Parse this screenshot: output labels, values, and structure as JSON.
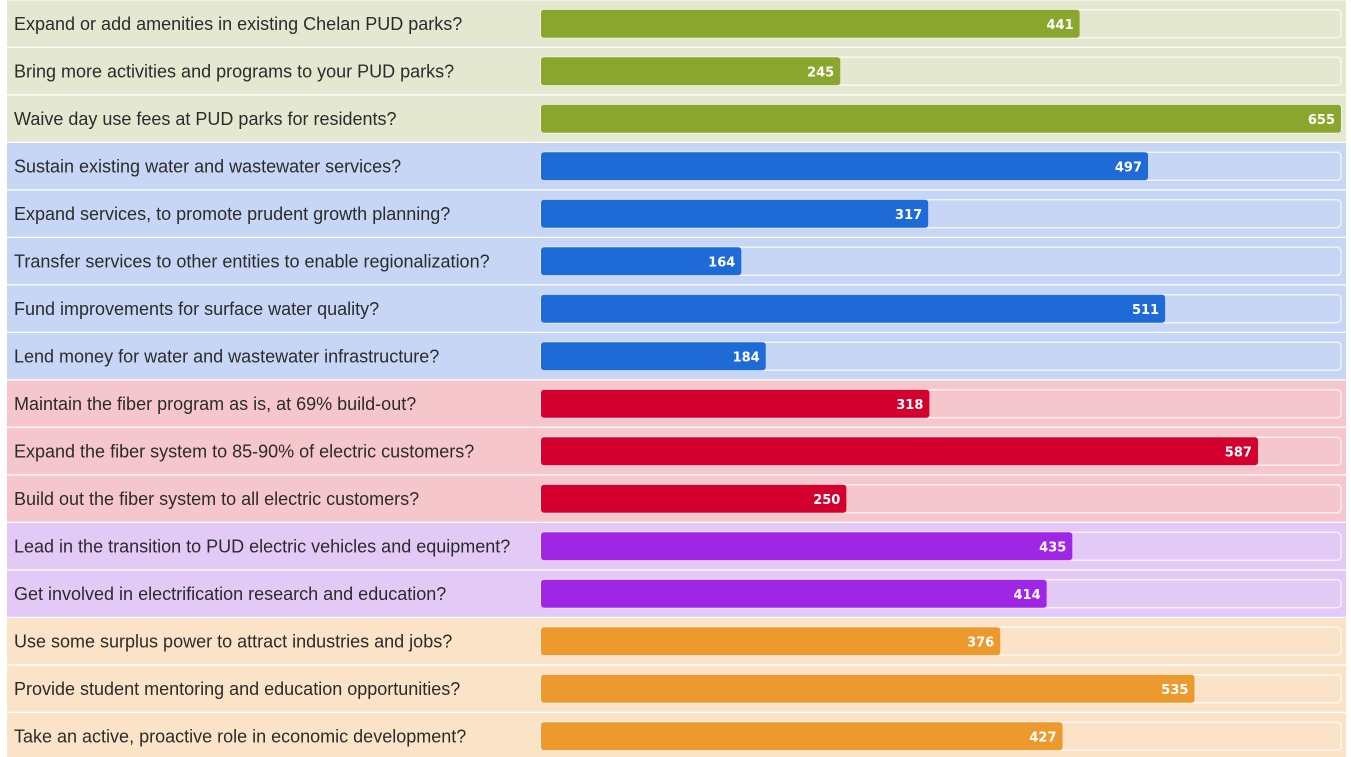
{
  "chart_data": {
    "type": "bar",
    "orientation": "horizontal",
    "title": "",
    "xlabel": "",
    "ylabel": "",
    "xlim": [
      0,
      655
    ],
    "grid": false,
    "legend": "none",
    "groups": [
      {
        "id": "parks",
        "bar_color": "#8ba62c",
        "row_color": "#e4e8d0",
        "row_color_alt": "#e4e8d0"
      },
      {
        "id": "water",
        "bar_color": "#1e6ad6",
        "row_color": "#c7d6f5",
        "row_color_alt": "#c7d6f5"
      },
      {
        "id": "fiber",
        "bar_color": "#d3002e",
        "row_color": "#f5c7cc",
        "row_color_alt": "#f5c7cc"
      },
      {
        "id": "electrification",
        "bar_color": "#a026e6",
        "row_color": "#e3c9f5",
        "row_color_alt": "#e3c9f5"
      },
      {
        "id": "economic",
        "bar_color": "#ec9a2e",
        "row_color": "#fbe3c8",
        "row_color_alt": "#fbe3c8"
      }
    ],
    "categories": [
      "Expand or add amenities in existing Chelan PUD parks?",
      "Bring more activities and programs to your PUD parks?",
      "Waive day use fees at PUD parks for residents?",
      "Sustain existing water and wastewater services?",
      "Expand services, to promote prudent growth planning?",
      "Transfer services to other entities to enable regionalization?",
      "Fund improvements for surface water quality?",
      "Lend money for water and wastewater infrastructure?",
      "Maintain the fiber program as is, at 69% build-out?",
      "Expand the fiber system to 85-90% of electric customers?",
      "Build out the fiber system to all electric customers?",
      "Lead in the transition to PUD electric vehicles and equipment?",
      "Get involved in electrification research and education?",
      "Use some surplus power to attract industries and jobs?",
      "Provide student mentoring and education opportunities?",
      "Take an active, proactive role in economic development?"
    ],
    "values": [
      441,
      245,
      655,
      497,
      317,
      164,
      511,
      184,
      318,
      587,
      250,
      435,
      414,
      376,
      535,
      427
    ],
    "group_index": [
      0,
      0,
      0,
      1,
      1,
      1,
      1,
      1,
      2,
      2,
      2,
      3,
      3,
      4,
      4,
      4
    ]
  }
}
